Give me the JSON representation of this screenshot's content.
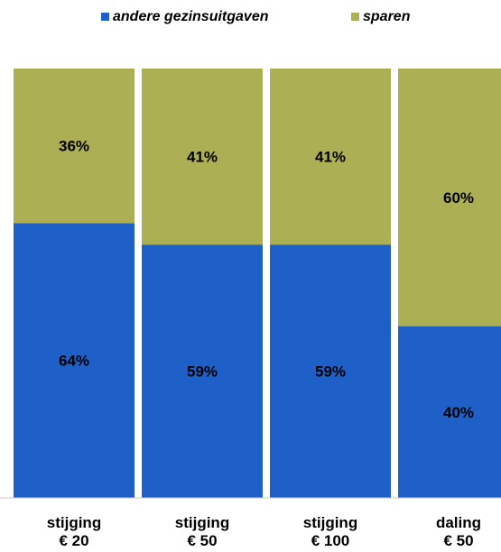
{
  "chart_data": {
    "type": "bar",
    "stacked": true,
    "categories": [
      [
        "stijging",
        "€ 20"
      ],
      [
        "stijging",
        "€ 50"
      ],
      [
        "stijging",
        "€ 100"
      ],
      [
        "daling",
        "€ 50"
      ]
    ],
    "series": [
      {
        "name": "andere gezinsuitgaven",
        "color": "#1F5FC8",
        "values": [
          64,
          59,
          59,
          40
        ],
        "labels": [
          "64%",
          "59%",
          "59%",
          "40%"
        ]
      },
      {
        "name": "sparen",
        "color": "#ADAF55",
        "values": [
          36,
          41,
          41,
          60
        ],
        "labels": [
          "36%",
          "41%",
          "41%",
          "60%"
        ]
      }
    ],
    "ylim": [
      0,
      100
    ],
    "legend": "top",
    "grid": false
  }
}
